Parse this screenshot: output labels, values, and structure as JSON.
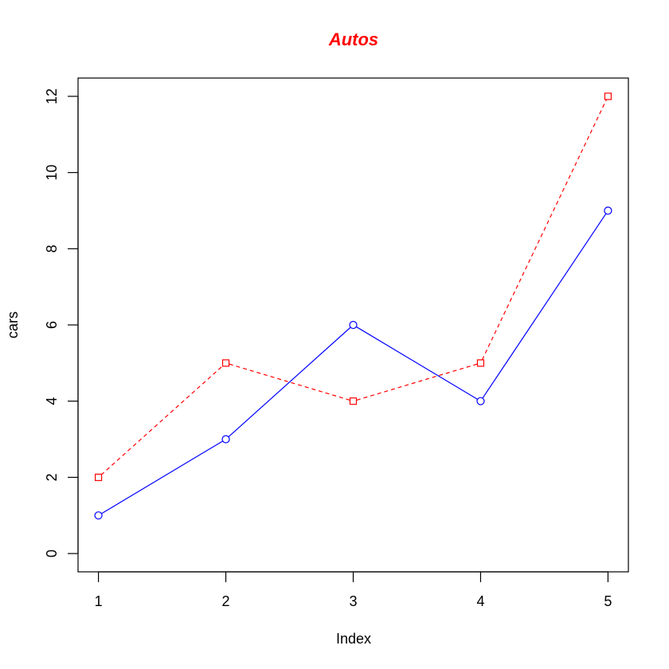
{
  "chart_data": {
    "type": "line",
    "title": "Autos",
    "title_color": "#ff0000",
    "xlabel": "Index",
    "ylabel": "cars",
    "x": [
      1,
      2,
      3,
      4,
      5
    ],
    "xlim": [
      0.84,
      5.16
    ],
    "ylim": [
      -0.48,
      12.48
    ],
    "xticks": [
      1,
      2,
      3,
      4,
      5
    ],
    "yticks": [
      0,
      2,
      4,
      6,
      8,
      10,
      12
    ],
    "grid": false,
    "legend": "none",
    "series": [
      {
        "values": [
          1,
          3,
          6,
          4,
          9
        ],
        "color": "#0000ff",
        "line_style": "solid",
        "marker": "circle"
      },
      {
        "values": [
          2,
          5,
          4,
          5,
          12
        ],
        "color": "#ff0000",
        "line_style": "dashed",
        "marker": "square"
      }
    ]
  }
}
